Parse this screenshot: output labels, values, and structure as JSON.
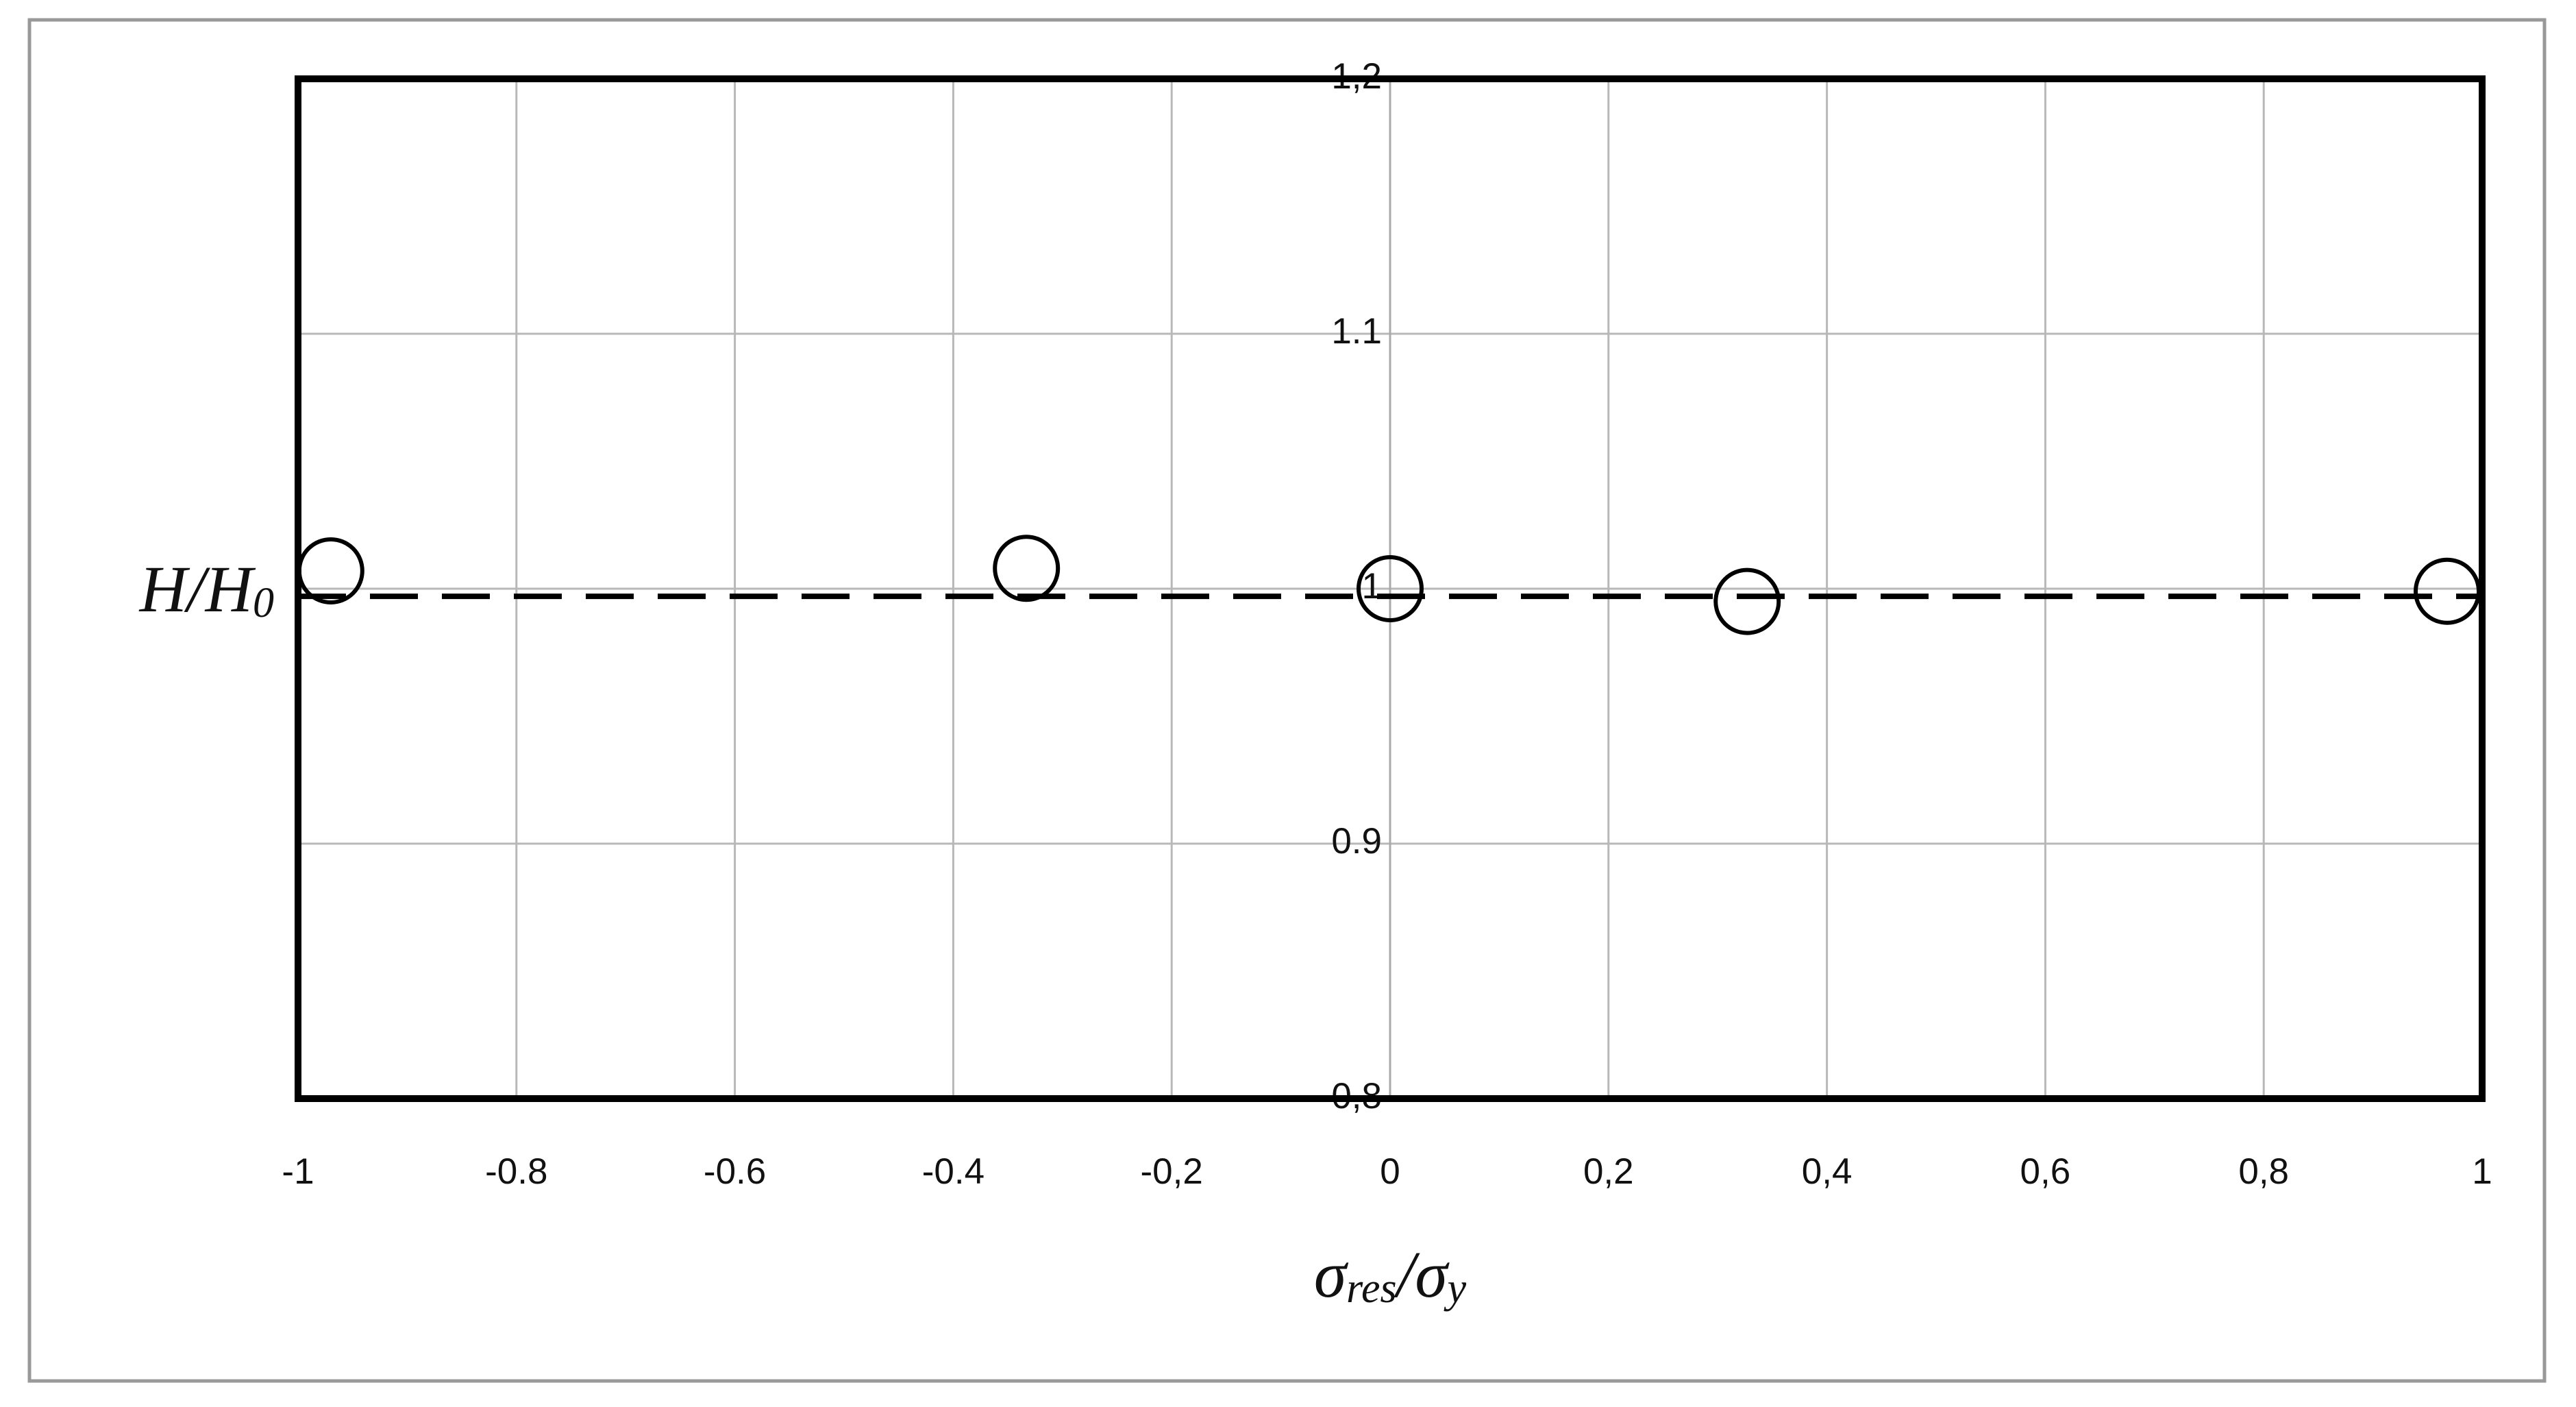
{
  "chart_data": {
    "type": "scatter",
    "xlabel": {
      "parts": [
        "σ",
        "res",
        "/σ",
        "y"
      ]
    },
    "ylabel": {
      "parts": [
        "H/H",
        "0"
      ]
    },
    "series": [
      {
        "color": "#000000",
        "marker": "open-circle",
        "x": [
          -0.97,
          -0.333,
          0,
          0.327,
          0.968
        ],
        "values": [
          1.007,
          1.008,
          1.0,
          0.995,
          0.999
        ]
      }
    ],
    "reference_line": {
      "x": [
        -1,
        1
      ],
      "y": [
        0.997,
        0.997
      ],
      "color": "#000000",
      "dash": true
    },
    "xlim": [
      -1,
      1
    ],
    "xticks": [
      {
        "value": -1,
        "label": "-1"
      },
      {
        "value": -0.8,
        "label": "-0.8"
      },
      {
        "value": -0.6,
        "label": "-0.6"
      },
      {
        "value": -0.4,
        "label": "-0.4"
      },
      {
        "value": -0.2,
        "label": "-0,2"
      },
      0,
      {
        "value": 0.2,
        "label": "0,2"
      },
      {
        "value": 0.4,
        "label": "0,4"
      },
      {
        "value": 0.6,
        "label": "0,6"
      },
      {
        "value": 0.8,
        "label": "0,8"
      },
      1
    ],
    "ylim": [
      0.8,
      1.2
    ],
    "yticks": [
      {
        "value": 0.8,
        "label": "0,8"
      },
      0.9,
      1,
      {
        "value": 1.1,
        "label": "1.1"
      },
      {
        "value": 1.2,
        "label": "1,2"
      }
    ],
    "grid": true
  }
}
